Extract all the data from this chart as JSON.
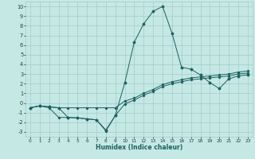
{
  "xlabel": "Humidex (Indice chaleur)",
  "xlim": [
    -0.5,
    23.5
  ],
  "ylim": [
    -3.5,
    10.5
  ],
  "yticks": [
    -3,
    -2,
    -1,
    0,
    1,
    2,
    3,
    4,
    5,
    6,
    7,
    8,
    9,
    10
  ],
  "xticks": [
    0,
    1,
    2,
    3,
    4,
    5,
    6,
    7,
    8,
    9,
    10,
    11,
    12,
    13,
    14,
    15,
    16,
    17,
    18,
    19,
    20,
    21,
    22,
    23
  ],
  "bg_color": "#c5e8e5",
  "line_color": "#1a6060",
  "grid_color": "#a0ccc8",
  "line1_x": [
    0,
    1,
    2,
    3,
    4,
    5,
    6,
    7,
    8,
    9,
    10,
    11,
    12,
    13,
    14,
    15,
    16,
    17,
    18,
    19,
    20,
    21,
    22,
    23
  ],
  "line1_y": [
    -0.5,
    -0.3,
    -0.4,
    -0.5,
    -0.5,
    -0.5,
    -0.5,
    -0.5,
    -0.5,
    -0.5,
    0.2,
    0.5,
    1.0,
    1.4,
    1.9,
    2.2,
    2.4,
    2.6,
    2.7,
    2.8,
    2.9,
    3.0,
    3.2,
    3.3
  ],
  "line2_x": [
    0,
    1,
    2,
    3,
    4,
    5,
    6,
    7,
    8,
    9,
    10,
    11,
    12,
    13,
    14,
    15,
    16,
    17,
    18,
    19,
    20,
    21,
    22,
    23
  ],
  "line2_y": [
    -0.5,
    -0.3,
    -0.4,
    -0.5,
    -1.5,
    -1.55,
    -1.65,
    -1.75,
    -2.8,
    -1.3,
    2.1,
    6.3,
    8.2,
    9.5,
    10.0,
    7.2,
    3.7,
    3.5,
    2.9,
    2.1,
    1.5,
    2.5,
    2.8,
    2.9
  ],
  "line3_x": [
    0,
    1,
    2,
    3,
    4,
    5,
    6,
    7,
    8,
    9,
    10,
    11,
    12,
    13,
    14,
    15,
    16,
    17,
    18,
    19,
    20,
    21,
    22,
    23
  ],
  "line3_y": [
    -0.5,
    -0.3,
    -0.5,
    -1.5,
    -1.5,
    -1.55,
    -1.65,
    -1.75,
    -2.9,
    -1.3,
    -0.1,
    0.3,
    0.8,
    1.2,
    1.7,
    2.0,
    2.2,
    2.4,
    2.5,
    2.6,
    2.7,
    2.8,
    3.0,
    3.1
  ]
}
